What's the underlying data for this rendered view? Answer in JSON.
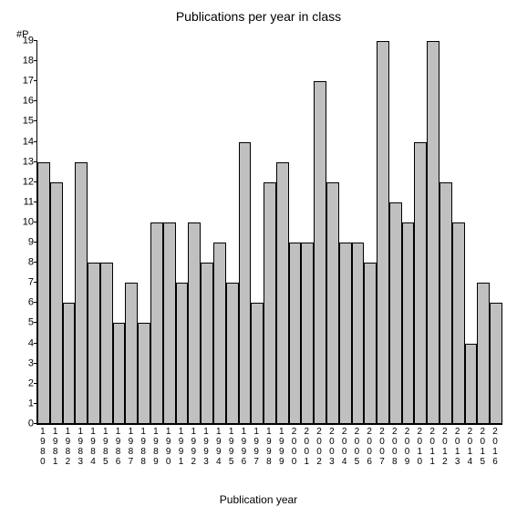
{
  "chart": {
    "type": "bar",
    "title": "Publications per year in class",
    "title_fontsize": 14,
    "y_label": "#P",
    "x_title": "Publication year",
    "x_title_fontsize": 12,
    "background_color": "#ffffff",
    "bar_fill": "#c0c0c0",
    "bar_border": "#000000",
    "axis_color": "#000000",
    "label_fontsize": 11,
    "tick_fontsize": 10,
    "ylim": [
      0,
      19
    ],
    "ytick_step": 1,
    "categories": [
      "1980",
      "1981",
      "1982",
      "1983",
      "1984",
      "1985",
      "1986",
      "1987",
      "1988",
      "1989",
      "1990",
      "1991",
      "1992",
      "1993",
      "1994",
      "1995",
      "1996",
      "1997",
      "1998",
      "1999",
      "2000",
      "2001",
      "2002",
      "2003",
      "2004",
      "2005",
      "2006",
      "2007",
      "2008",
      "2009",
      "2010",
      "2011",
      "2012",
      "2013",
      "2014",
      "2015",
      "2016"
    ],
    "values": [
      13,
      12,
      6,
      13,
      8,
      8,
      5,
      7,
      5,
      10,
      10,
      7,
      10,
      8,
      9,
      7,
      14,
      6,
      12,
      13,
      9,
      9,
      17,
      12,
      9,
      9,
      8,
      19,
      11,
      10,
      14,
      19,
      12,
      10,
      4,
      7,
      6
    ]
  }
}
